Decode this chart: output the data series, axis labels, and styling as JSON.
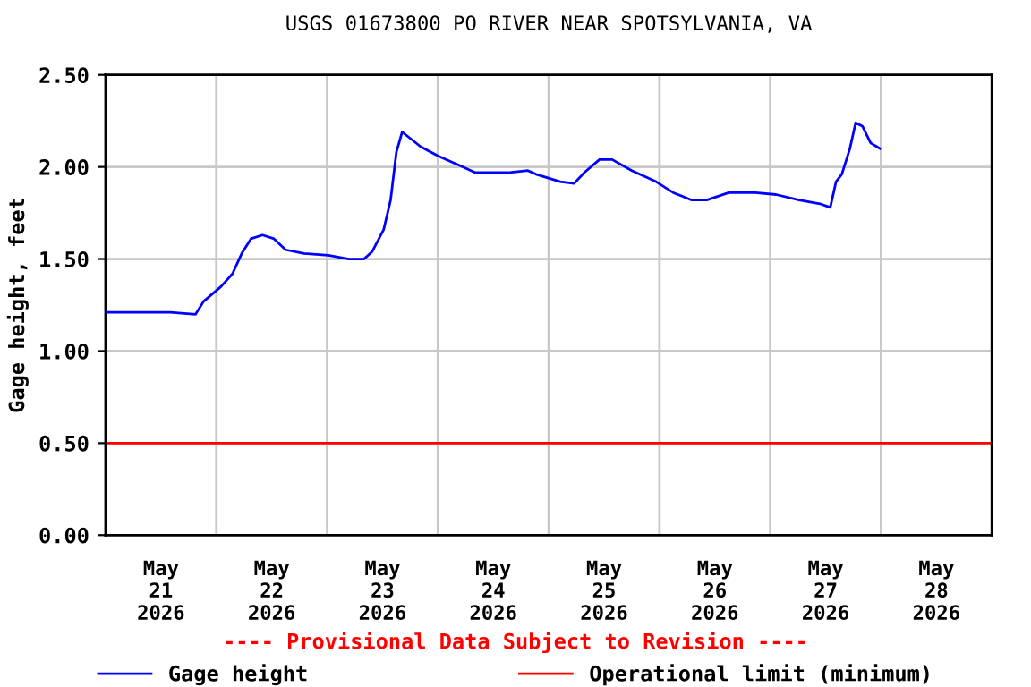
{
  "chart_data": {
    "type": "line",
    "title": "USGS 01673800 PO RIVER NEAR SPOTSYLVANIA, VA",
    "ylabel": "Gage height, feet",
    "x": [
      "2026-05-21T00:00",
      "2026-05-21T14:00",
      "2026-05-21T19:30",
      "2026-05-21T21:15",
      "2026-05-22T01:00",
      "2026-05-22T03:30",
      "2026-05-22T05:30",
      "2026-05-22T07:30",
      "2026-05-22T10:00",
      "2026-05-22T12:30",
      "2026-05-22T15:00",
      "2026-05-22T19:00",
      "2026-05-23T00:15",
      "2026-05-23T04:45",
      "2026-05-23T08:00",
      "2026-05-23T09:45",
      "2026-05-23T12:15",
      "2026-05-23T13:45",
      "2026-05-23T15:00",
      "2026-05-23T16:15",
      "2026-05-23T20:15",
      "2026-05-24T00:00",
      "2026-05-24T04:30",
      "2026-05-24T08:00",
      "2026-05-24T15:30",
      "2026-05-24T19:30",
      "2026-05-24T21:15",
      "2026-05-25T02:30",
      "2026-05-25T05:30",
      "2026-05-25T07:45",
      "2026-05-25T11:00",
      "2026-05-25T13:45",
      "2026-05-25T18:00",
      "2026-05-25T23:15",
      "2026-05-26T03:00",
      "2026-05-26T07:00",
      "2026-05-26T10:15",
      "2026-05-26T15:00",
      "2026-05-26T20:45",
      "2026-05-27T01:15",
      "2026-05-27T06:15",
      "2026-05-27T10:45",
      "2026-05-27T13:00",
      "2026-05-27T14:15",
      "2026-05-27T15:30",
      "2026-05-27T17:15",
      "2026-05-27T18:30",
      "2026-05-27T20:00",
      "2026-05-27T21:45",
      "2026-05-27T23:45"
    ],
    "series": [
      {
        "name": "Gage height",
        "color": "#0000ff",
        "values": [
          1.21,
          1.21,
          1.2,
          1.27,
          1.35,
          1.42,
          1.53,
          1.61,
          1.63,
          1.61,
          1.55,
          1.53,
          1.52,
          1.5,
          1.5,
          1.54,
          1.66,
          1.82,
          2.08,
          2.19,
          2.11,
          2.06,
          2.01,
          1.97,
          1.97,
          1.98,
          1.96,
          1.92,
          1.91,
          1.97,
          2.04,
          2.04,
          1.98,
          1.92,
          1.86,
          1.82,
          1.82,
          1.86,
          1.86,
          1.85,
          1.82,
          1.8,
          1.78,
          1.92,
          1.96,
          2.1,
          2.24,
          2.22,
          2.13,
          2.1
        ]
      }
    ],
    "ref_lines": [
      {
        "axis": "y",
        "value": 0.5,
        "label": "Operational limit (minimum)",
        "color": "#ff0000"
      }
    ],
    "xlim": [
      "2026-05-21T00:00",
      "2026-05-29T00:00"
    ],
    "xticks": [
      {
        "value": "2026-05-21T12:00",
        "label": "May\n21\n2026"
      },
      {
        "value": "2026-05-22T00:00",
        "label": null
      },
      {
        "value": "2026-05-22T12:00",
        "label": "May\n22\n2026"
      },
      {
        "value": "2026-05-23T00:00",
        "label": null
      },
      {
        "value": "2026-05-23T12:00",
        "label": "May\n23\n2026"
      },
      {
        "value": "2026-05-24T00:00",
        "label": null
      },
      {
        "value": "2026-05-24T12:00",
        "label": "May\n24\n2026"
      },
      {
        "value": "2026-05-25T00:00",
        "label": null
      },
      {
        "value": "2026-05-25T12:00",
        "label": "May\n25\n2026"
      },
      {
        "value": "2026-05-26T00:00",
        "label": null
      },
      {
        "value": "2026-05-26T12:00",
        "label": "May\n26\n2026"
      },
      {
        "value": "2026-05-27T00:00",
        "label": null
      },
      {
        "value": "2026-05-27T12:00",
        "label": "May\n27\n2026"
      },
      {
        "value": "2026-05-28T00:00",
        "label": null
      },
      {
        "value": "2026-05-28T12:00",
        "label": "May\n28\n2026"
      }
    ],
    "ylim": [
      0,
      2.5
    ],
    "yticks": [
      {
        "value": 0,
        "label": "0.00"
      },
      {
        "value": 0.5,
        "label": "0.50"
      },
      {
        "value": 1,
        "label": "1.00"
      },
      {
        "value": 1.5,
        "label": "1.50"
      },
      {
        "value": 2,
        "label": "2.00"
      },
      {
        "value": 2.5,
        "label": "2.50"
      }
    ],
    "grid": true,
    "legend": "bottom",
    "marker": "none",
    "line_style": "solid",
    "annotations": [
      "---- Provisional Data Subject to Revision ----"
    ]
  }
}
